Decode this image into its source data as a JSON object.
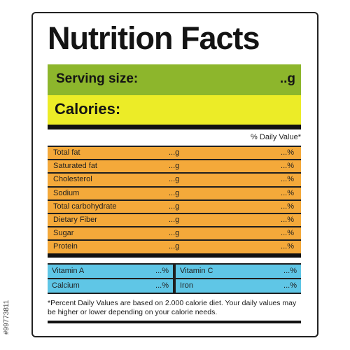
{
  "title": "Nutrition Facts",
  "serving": {
    "label": "Serving size:",
    "value": "..g"
  },
  "calories": {
    "label": "Calories:"
  },
  "daily_value_header": "% Daily Value*",
  "nutrients": [
    {
      "name": "Total fat",
      "amount": "...g",
      "percent": "...%"
    },
    {
      "name": "Saturated fat",
      "amount": "...g",
      "percent": "...%"
    },
    {
      "name": "Cholesterol",
      "amount": "...g",
      "percent": "...%"
    },
    {
      "name": "Sodium",
      "amount": "...g",
      "percent": "...%"
    },
    {
      "name": "Total carbohydrate",
      "amount": "...g",
      "percent": "...%"
    },
    {
      "name": "Dietary Fiber",
      "amount": "...g",
      "percent": "...%"
    },
    {
      "name": "Sugar",
      "amount": "...g",
      "percent": "...%"
    },
    {
      "name": "Protein",
      "amount": "...g",
      "percent": "...%"
    }
  ],
  "vitamins": [
    {
      "name": "Vitamin A",
      "percent": "...%"
    },
    {
      "name": "Vitamin C",
      "percent": "...%"
    },
    {
      "name": "Calcium",
      "percent": "...%"
    },
    {
      "name": "Iron",
      "percent": "...%"
    }
  ],
  "footnote": "*Percent Daily Values are based on 2.000 calorie diet. Your daily values may be higher or lower depending on your calorie needs.",
  "stock_id": "#99773811",
  "colors": {
    "serving_band": "#8db62c",
    "calories_band": "#ecec27",
    "nutrient_rows": "#f4a93a",
    "vitamin_cells": "#5fc6e6",
    "rules": "#111111"
  }
}
